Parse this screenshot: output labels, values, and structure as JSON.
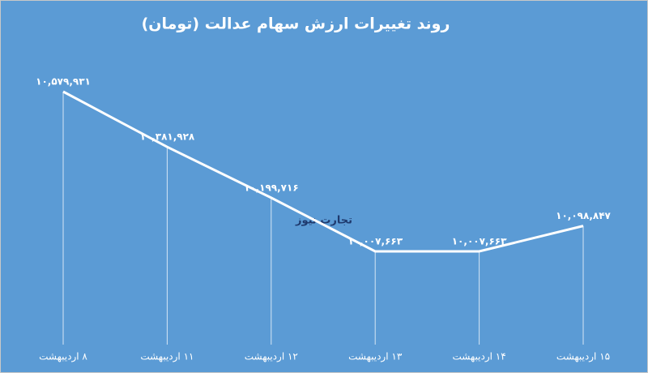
{
  "chart_data": {
    "type": "line",
    "title": "روند تغییرات ارزش سهام عدالت (تومان)",
    "watermark": "تجارت نیوز",
    "categories": [
      "۸ اردیبهشت",
      "۱۱ اردیبهشت",
      "۱۲ اردیبهشت",
      "۱۳ اردیبهشت",
      "۱۴ اردیبهشت",
      "۱۵ اردیبهشت"
    ],
    "values": [
      10579931,
      10381928,
      10199716,
      10007663,
      10007663,
      10098847
    ],
    "value_labels": [
      "۱۰,۵۷۹,۹۳۱",
      "۱۰,۳۸۱,۹۲۸",
      "۱۰,۱۹۹,۷۱۶",
      "۱۰,۰۰۷,۶۶۳",
      "۱۰,۰۰۷,۶۶۳",
      "۱۰,۰۹۸,۸۴۷"
    ],
    "color": "#ffffff",
    "background": "#5b9bd5"
  }
}
